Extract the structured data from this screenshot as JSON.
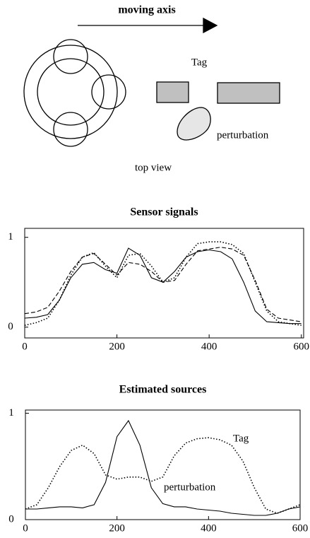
{
  "diagram": {
    "axis_label": "moving axis",
    "tag": "Tag",
    "perturbation": "perturbation",
    "caption": "top view"
  },
  "chart_data": [
    {
      "type": "line",
      "title": "Sensor signals",
      "x": [
        0,
        25,
        50,
        75,
        100,
        125,
        150,
        175,
        200,
        225,
        250,
        275,
        300,
        325,
        350,
        375,
        400,
        425,
        450,
        475,
        500,
        525,
        550,
        575,
        600
      ],
      "series": [
        {
          "color": "#000000",
          "style": "solid",
          "values": [
            0.1,
            0.11,
            0.14,
            0.3,
            0.55,
            0.7,
            0.72,
            0.64,
            0.6,
            0.88,
            0.8,
            0.55,
            0.5,
            0.62,
            0.78,
            0.84,
            0.86,
            0.84,
            0.76,
            0.5,
            0.18,
            0.06,
            0.05,
            0.04,
            0.04
          ]
        },
        {
          "color": "#000000",
          "style": "dashed",
          "values": [
            0.15,
            0.17,
            0.22,
            0.4,
            0.62,
            0.78,
            0.82,
            0.7,
            0.58,
            0.72,
            0.7,
            0.62,
            0.5,
            0.52,
            0.7,
            0.85,
            0.87,
            0.89,
            0.87,
            0.8,
            0.52,
            0.2,
            0.1,
            0.08,
            0.06
          ]
        },
        {
          "color": "#000000",
          "style": "dotted",
          "values": [
            0.02,
            0.05,
            0.1,
            0.3,
            0.58,
            0.78,
            0.83,
            0.68,
            0.55,
            0.8,
            0.82,
            0.68,
            0.5,
            0.55,
            0.78,
            0.93,
            0.95,
            0.95,
            0.92,
            0.82,
            0.5,
            0.18,
            0.06,
            0.04,
            0.02
          ]
        }
      ],
      "xlim": [
        0,
        605
      ],
      "ylim": [
        -0.12,
        1.1
      ],
      "xticks": [
        0,
        200,
        400,
        600
      ],
      "yticks": [
        0,
        1
      ]
    },
    {
      "type": "line",
      "title": "Estimated sources",
      "x": [
        0,
        25,
        50,
        75,
        100,
        125,
        150,
        175,
        200,
        225,
        250,
        275,
        300,
        325,
        350,
        375,
        400,
        425,
        450,
        475,
        500,
        525,
        550,
        575,
        600
      ],
      "series": [
        {
          "name": "Tag",
          "color": "#000000",
          "style": "dotted",
          "values": [
            0.1,
            0.14,
            0.3,
            0.5,
            0.65,
            0.7,
            0.62,
            0.42,
            0.38,
            0.4,
            0.4,
            0.36,
            0.4,
            0.6,
            0.72,
            0.76,
            0.77,
            0.75,
            0.7,
            0.55,
            0.3,
            0.1,
            0.06,
            0.1,
            0.14
          ]
        },
        {
          "name": "perturbation",
          "color": "#000000",
          "style": "solid",
          "values": [
            0.1,
            0.1,
            0.11,
            0.12,
            0.12,
            0.11,
            0.14,
            0.35,
            0.78,
            0.93,
            0.7,
            0.3,
            0.15,
            0.12,
            0.12,
            0.1,
            0.09,
            0.08,
            0.06,
            0.05,
            0.04,
            0.04,
            0.06,
            0.1,
            0.12
          ]
        }
      ],
      "xlim": [
        0,
        600
      ],
      "ylim": [
        0,
        1.03
      ],
      "xticks": [
        0,
        200,
        400,
        600
      ],
      "yticks": [
        0,
        1
      ]
    }
  ]
}
